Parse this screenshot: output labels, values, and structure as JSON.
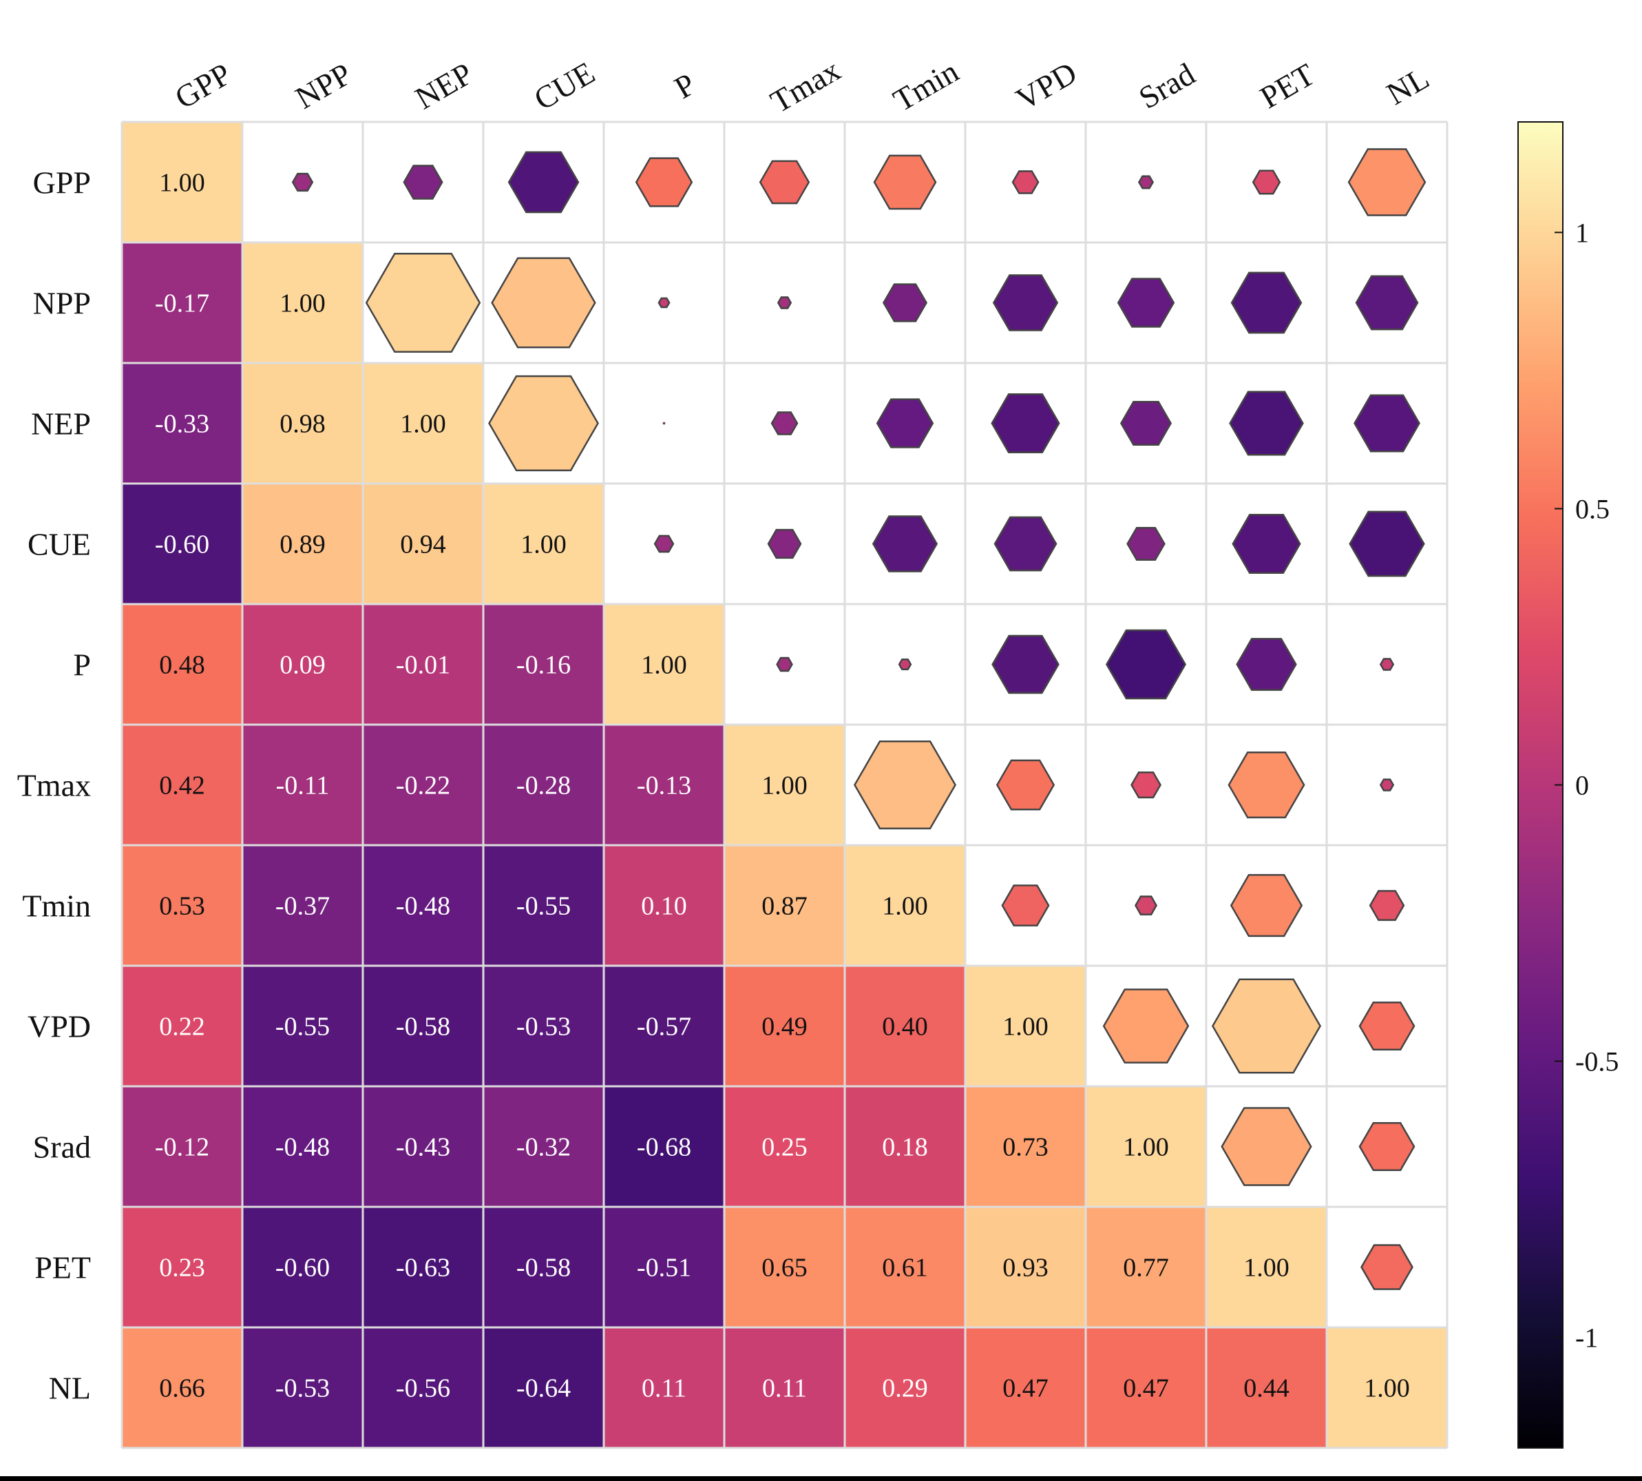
{
  "chart_data": {
    "type": "heatmap",
    "variables": [
      "GPP",
      "NPP",
      "NEP",
      "CUE",
      "P",
      "Tmax",
      "Tmin",
      "VPD",
      "Srad",
      "PET",
      "NL"
    ],
    "matrix": [
      [
        1.0,
        -0.17,
        -0.33,
        -0.6,
        0.48,
        0.42,
        0.53,
        0.22,
        -0.12,
        0.23,
        0.66
      ],
      [
        -0.17,
        1.0,
        0.98,
        0.89,
        0.09,
        -0.11,
        -0.37,
        -0.55,
        -0.48,
        -0.6,
        -0.53
      ],
      [
        -0.33,
        0.98,
        1.0,
        0.94,
        -0.01,
        -0.22,
        -0.48,
        -0.58,
        -0.43,
        -0.63,
        -0.56
      ],
      [
        -0.6,
        0.89,
        0.94,
        1.0,
        -0.16,
        -0.28,
        -0.55,
        -0.53,
        -0.32,
        -0.58,
        -0.64
      ],
      [
        0.48,
        0.09,
        -0.01,
        -0.16,
        1.0,
        -0.13,
        0.1,
        -0.57,
        -0.68,
        -0.51,
        0.11
      ],
      [
        0.42,
        -0.11,
        -0.22,
        -0.28,
        -0.13,
        1.0,
        0.87,
        0.49,
        0.25,
        0.65,
        0.11
      ],
      [
        0.53,
        -0.37,
        -0.48,
        -0.55,
        0.1,
        0.87,
        1.0,
        0.4,
        0.18,
        0.61,
        0.29
      ],
      [
        0.22,
        -0.55,
        -0.58,
        -0.53,
        -0.57,
        0.49,
        0.4,
        1.0,
        0.73,
        0.93,
        0.47
      ],
      [
        -0.12,
        -0.48,
        -0.43,
        -0.32,
        -0.68,
        0.25,
        0.18,
        0.73,
        1.0,
        0.77,
        0.47
      ],
      [
        0.23,
        -0.6,
        -0.63,
        -0.58,
        -0.51,
        0.65,
        0.61,
        0.93,
        0.77,
        1.0,
        0.44
      ],
      [
        0.66,
        -0.53,
        -0.56,
        -0.64,
        0.11,
        0.11,
        0.29,
        0.47,
        0.47,
        0.44,
        1.0
      ]
    ],
    "lower_triangle": "colored cells with values",
    "upper_triangle": "hexagons sized and colored by correlation",
    "colormap": "magma",
    "color_range": [
      -1.2,
      1.2
    ],
    "colorbar_ticks": [
      1,
      0.5,
      0,
      -0.5,
      -1
    ],
    "colorbar_tick_labels": [
      "1",
      "0.5",
      "0",
      "-0.5",
      "-1"
    ],
    "hexagon_stroke": "#444444",
    "grid_line_color": "#dddddd"
  }
}
